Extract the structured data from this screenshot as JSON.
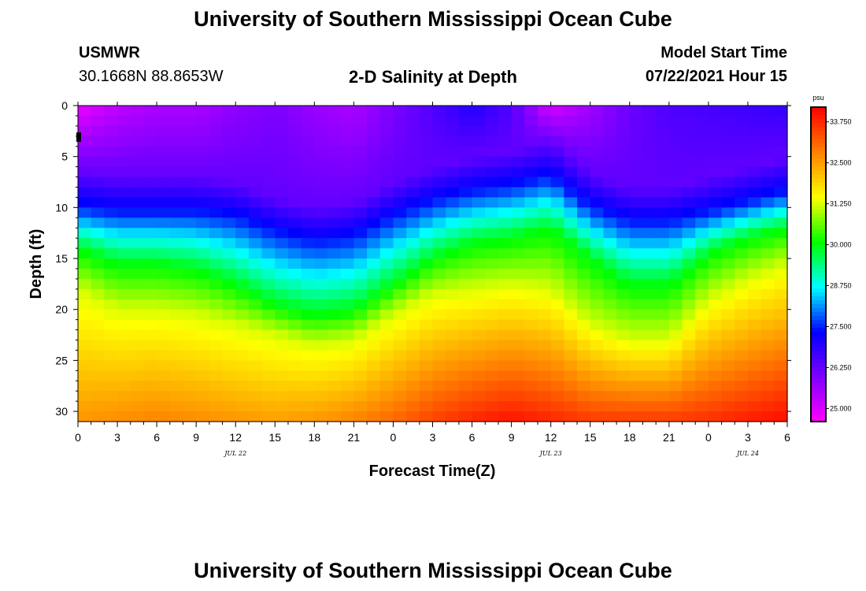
{
  "header": {
    "title_top": "University of Southern Mississippi Ocean Cube",
    "title_bottom": "University of Southern Mississippi Ocean Cube",
    "station": "USMWR",
    "location": "30.1668N  88.8653W",
    "chart_title": "2-D Salinity at Depth",
    "model_label": "Model Start Time",
    "model_time": "07/22/2021 Hour 15"
  },
  "colors": {
    "colormap": [
      "#ff00ff",
      "#8000ff",
      "#0000ff",
      "#00ffff",
      "#00ff00",
      "#ffff00",
      "#ff8000",
      "#ff0000"
    ]
  },
  "chart_data": {
    "type": "heatmap",
    "title": "2-D Salinity at Depth",
    "xlabel": "Forecast Time(Z)",
    "ylabel": "Depth (ft)",
    "x_ticks": [
      "0",
      "3",
      "6",
      "9",
      "12",
      "15",
      "18",
      "21",
      "0",
      "3",
      "6",
      "9",
      "12",
      "15",
      "18",
      "21",
      "0",
      "3",
      "6"
    ],
    "x_range_hours": [
      0,
      54
    ],
    "date_labels": [
      {
        "label": "JUL 22",
        "hour": 12
      },
      {
        "label": "JUL 23",
        "hour": 36
      },
      {
        "label": "JUL 24",
        "hour": 51
      }
    ],
    "y_ticks": [
      "0",
      "5",
      "10",
      "15",
      "20",
      "25",
      "30"
    ],
    "ylim": [
      0,
      31
    ],
    "y_inverted": true,
    "colorbar": {
      "unit": "psu",
      "min": 24.6,
      "max": 34.2,
      "labels": [
        "33.750",
        "32.500",
        "31.250",
        "30.000",
        "28.750",
        "27.500",
        "26.250",
        "25.000"
      ]
    },
    "isohaline_depths_ft": {
      "hours": [
        0,
        3,
        6,
        9,
        12,
        15,
        18,
        21,
        24,
        27,
        30,
        33,
        36,
        39,
        42,
        45,
        48,
        51,
        54
      ],
      "sal_27_5": [
        10.0,
        10.5,
        10.5,
        10.5,
        11.0,
        12.5,
        13.5,
        13.0,
        11.0,
        9.5,
        8.5,
        8.0,
        7.0,
        10.0,
        11.5,
        11.5,
        10.5,
        9.5,
        8.5
      ],
      "sal_30_0": [
        14.0,
        15.5,
        15.5,
        16.0,
        17.5,
        19.5,
        20.5,
        20.0,
        17.5,
        15.0,
        13.5,
        13.0,
        12.0,
        15.0,
        17.5,
        17.5,
        14.5,
        13.0,
        12.0
      ],
      "sal_31_25": [
        18.0,
        20.0,
        20.0,
        20.5,
        21.5,
        22.5,
        23.5,
        23.0,
        20.5,
        18.5,
        18.0,
        17.5,
        18.0,
        21.5,
        23.0,
        23.0,
        19.0,
        17.0,
        15.5
      ]
    },
    "surface_salinity_psu": [
      24.8,
      25.3,
      25.5,
      25.5,
      25.8,
      26.0,
      25.7,
      25.5,
      26.0,
      26.5,
      27.0,
      26.5,
      25.0,
      25.6,
      26.2,
      26.5,
      26.6,
      26.7,
      26.8
    ],
    "bottom_salinity_psu": [
      32.6,
      32.7,
      32.8,
      32.7,
      32.6,
      32.5,
      32.6,
      32.8,
      33.1,
      33.5,
      33.8,
      34.0,
      33.8,
      33.6,
      33.6,
      33.6,
      33.7,
      33.9,
      34.1
    ]
  }
}
